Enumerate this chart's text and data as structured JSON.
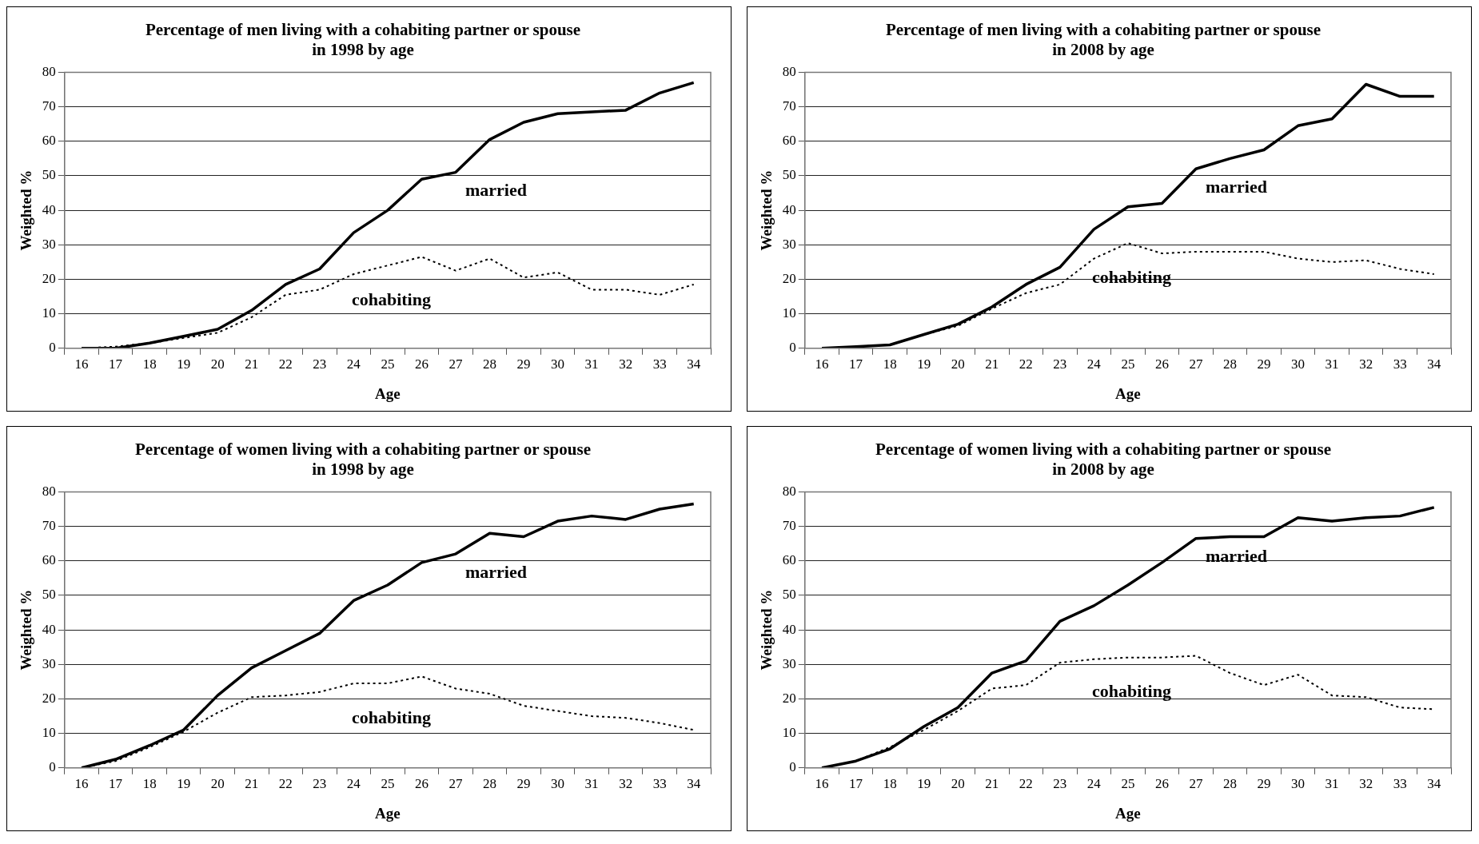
{
  "chart_data": [
    {
      "type": "line",
      "title": "Percentage of men living with a cohabiting partner or spouse\nin 1998 by age",
      "xlabel": "Age",
      "ylabel": "Weighted %",
      "categories": [
        "16",
        "17",
        "18",
        "19",
        "20",
        "21",
        "22",
        "23",
        "24",
        "25",
        "26",
        "27",
        "28",
        "29",
        "30",
        "31",
        "32",
        "33",
        "34"
      ],
      "ylim": [
        0,
        80
      ],
      "yticks": [
        0,
        10,
        20,
        30,
        40,
        50,
        60,
        70,
        80
      ],
      "grid": "y",
      "legend": false,
      "marker": "none",
      "series": [
        {
          "name": "married",
          "color": "#000000",
          "line_style": "solid",
          "values": [
            0,
            0,
            1.5,
            3.5,
            5.5,
            11,
            18.5,
            23,
            33.5,
            40,
            49,
            51,
            60.5,
            65.5,
            68,
            68.5,
            69,
            74,
            77
          ]
        },
        {
          "name": "cohabiting",
          "color": "#000000",
          "line_style": "dotted",
          "values": [
            0,
            0.5,
            1.5,
            3,
            4.5,
            9,
            15.5,
            17,
            21.5,
            24,
            26.5,
            22.5,
            26,
            20.5,
            22,
            17,
            17,
            15.5,
            18.5
          ]
        }
      ]
    },
    {
      "type": "line",
      "title": "Percentage of men living with a cohabiting partner or spouse\nin 2008 by age",
      "xlabel": "Age",
      "ylabel": "Weighted %",
      "categories": [
        "16",
        "17",
        "18",
        "19",
        "20",
        "21",
        "22",
        "23",
        "24",
        "25",
        "26",
        "27",
        "28",
        "29",
        "30",
        "31",
        "32",
        "33",
        "34"
      ],
      "ylim": [
        0,
        80
      ],
      "yticks": [
        0,
        10,
        20,
        30,
        40,
        50,
        60,
        70,
        80
      ],
      "grid": "y",
      "legend": false,
      "marker": "none",
      "series": [
        {
          "name": "married",
          "color": "#000000",
          "line_style": "solid",
          "values": [
            0,
            0.5,
            1,
            4,
            7,
            12,
            18.5,
            23.5,
            34.5,
            41,
            42,
            52,
            55,
            57.5,
            64.5,
            66.5,
            76.5,
            73,
            73
          ]
        },
        {
          "name": "cohabiting",
          "color": "#000000",
          "line_style": "dotted",
          "values": [
            0,
            0.5,
            1,
            4,
            6.5,
            11.5,
            16,
            18.5,
            26,
            30.5,
            27.5,
            28,
            28,
            28,
            26,
            25,
            25.5,
            23,
            21.5
          ]
        }
      ]
    },
    {
      "type": "line",
      "title": "Percentage of women living with a cohabiting partner or spouse\nin 1998 by age",
      "xlabel": "Age",
      "ylabel": "Weighted %",
      "categories": [
        "16",
        "17",
        "18",
        "19",
        "20",
        "21",
        "22",
        "23",
        "24",
        "25",
        "26",
        "27",
        "28",
        "29",
        "30",
        "31",
        "32",
        "33",
        "34"
      ],
      "ylim": [
        0,
        80
      ],
      "yticks": [
        0,
        10,
        20,
        30,
        40,
        50,
        60,
        70,
        80
      ],
      "grid": "y",
      "legend": false,
      "marker": "none",
      "series": [
        {
          "name": "married",
          "color": "#000000",
          "line_style": "solid",
          "values": [
            0,
            2.5,
            6.5,
            11,
            21,
            29,
            34,
            39,
            48.5,
            53,
            59.5,
            62,
            68,
            67,
            71.5,
            73,
            72,
            75,
            76.5
          ]
        },
        {
          "name": "cohabiting",
          "color": "#000000",
          "line_style": "dotted",
          "values": [
            0,
            2,
            6,
            10.5,
            16,
            20.5,
            21,
            22,
            24.5,
            24.5,
            26.5,
            23,
            21.5,
            18,
            16.5,
            15,
            14.5,
            13,
            11
          ]
        }
      ]
    },
    {
      "type": "line",
      "title": "Percentage of women living with a cohabiting partner or spouse\nin 2008 by age",
      "xlabel": "Age",
      "ylabel": "Weighted %",
      "categories": [
        "16",
        "17",
        "18",
        "19",
        "20",
        "21",
        "22",
        "23",
        "24",
        "25",
        "26",
        "27",
        "28",
        "29",
        "30",
        "31",
        "32",
        "33",
        "34"
      ],
      "ylim": [
        0,
        80
      ],
      "yticks": [
        0,
        10,
        20,
        30,
        40,
        50,
        60,
        70,
        80
      ],
      "grid": "y",
      "legend": false,
      "marker": "none",
      "series": [
        {
          "name": "married",
          "color": "#000000",
          "line_style": "solid",
          "values": [
            0,
            2,
            5.5,
            12,
            17.5,
            27.5,
            31,
            42.5,
            47,
            53,
            59.5,
            66.5,
            67,
            67,
            72.5,
            71.5,
            72.5,
            73,
            75.5
          ]
        },
        {
          "name": "cohabiting",
          "color": "#000000",
          "line_style": "dotted",
          "values": [
            0,
            2,
            6,
            11,
            16.5,
            23,
            24,
            30.5,
            31.5,
            32,
            32,
            32.5,
            27.5,
            24,
            27,
            21,
            20.5,
            17.5,
            17
          ]
        }
      ]
    }
  ]
}
